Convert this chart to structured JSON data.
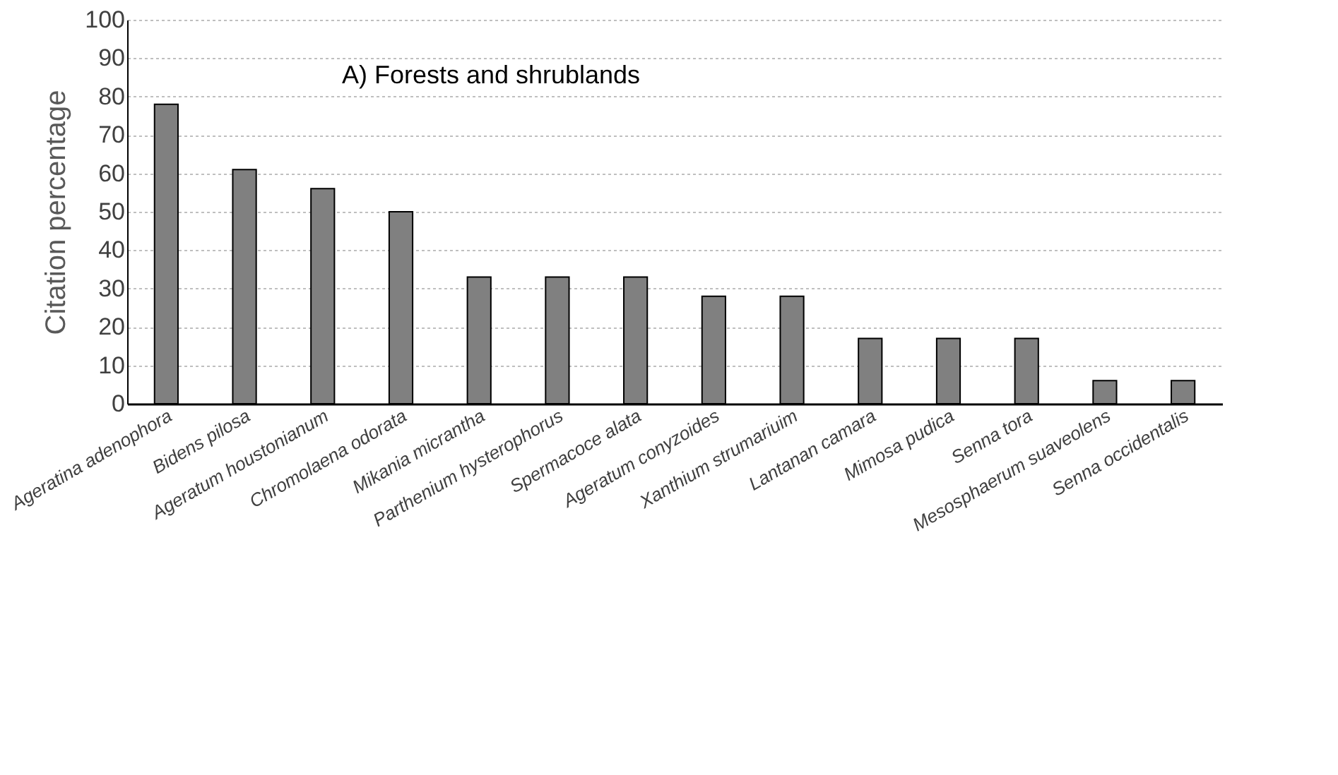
{
  "chart_data": {
    "type": "bar",
    "title": "A) Forests and shrublands",
    "ylabel": "Citation percentage",
    "categories": [
      "Ageratina adenophora",
      "Bidens pilosa",
      "Ageratum houstonianum",
      "Chromolaena odorata",
      "Mikania micrantha",
      "Parthenium hysterophorus",
      "Spermacoce alata",
      "Ageratum conyzoides",
      "Xanthium strumariuim",
      "Lantanan camara",
      "Mimosa pudica",
      "Senna tora",
      "Mesosphaerum suaveolens",
      "Senna occidentalis"
    ],
    "values": [
      78,
      61,
      56,
      50,
      33,
      33,
      33,
      28,
      28,
      17,
      17,
      17,
      6,
      6
    ],
    "color": "#808080",
    "ylim": [
      0,
      100
    ],
    "yticks": [
      0,
      10,
      20,
      30,
      40,
      50,
      60,
      70,
      80,
      90,
      100
    ],
    "grid": "y"
  }
}
